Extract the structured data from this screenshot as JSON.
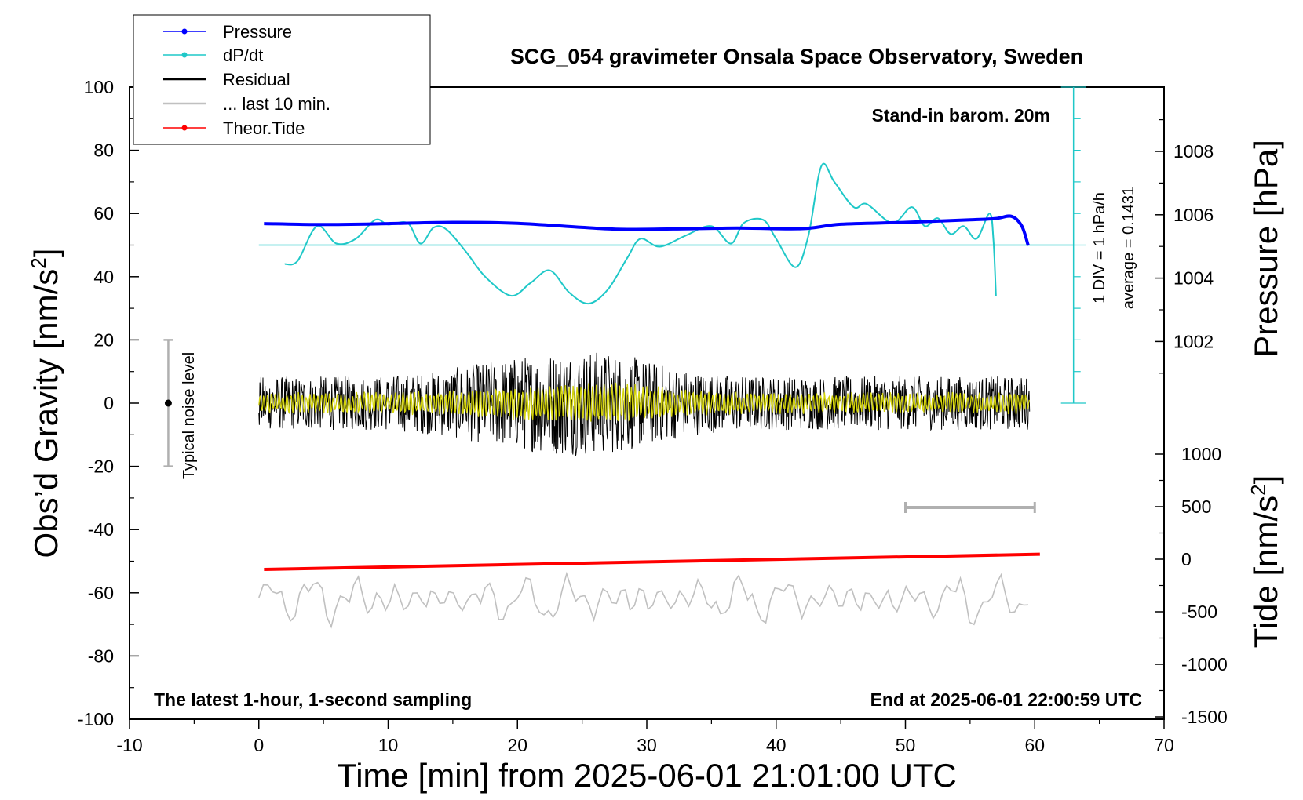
{
  "chart_data": {
    "type": "line",
    "title": "SCG_054 gravimeter Onsala Space Observatory, Sweden",
    "xlabel": "Time [min] from 2025-06-01 21:01:00 UTC",
    "ylabel_left": "Obs’d Gravity [nm/s",
    "ylabel_left_sup": "2",
    "ylabel_left_close": "]",
    "ylabel_right_pressure": "Pressure [hPa]",
    "ylabel_right_tide": "Tide [nm/s",
    "ylabel_right_tide_sup": "2",
    "ylabel_right_tide_close": "]",
    "xlim": [
      -10,
      70
    ],
    "ylim": [
      -100,
      100
    ],
    "x_ticks": [
      "-10",
      "0",
      "10",
      "20",
      "30",
      "40",
      "50",
      "60",
      "70"
    ],
    "y_ticks": [
      "100",
      "80",
      "60",
      "40",
      "20",
      "0",
      "-20",
      "-40",
      "-60",
      "-80",
      "-100"
    ],
    "pressure_ticks": [
      "1008",
      "1006",
      "1004",
      "1002"
    ],
    "pressure_tick_values": [
      1008,
      1006,
      1004,
      1002
    ],
    "tide_ticks": [
      "1000",
      "500",
      "0",
      "-500",
      "-1000",
      "-1500"
    ],
    "tide_tick_values": [
      1000,
      500,
      0,
      -500,
      -1000,
      -1500
    ],
    "annotations": {
      "barometer": "Stand-in barom. 20m",
      "div": "1 DIV = 1 hPa/h",
      "average": "average = 0.1431",
      "noise": "Typical noise level",
      "bottom_left": "The latest 1-hour, 1-second sampling",
      "bottom_right": "End at 2025-06-01 22:00:59 UTC"
    },
    "legend": {
      "placement": "top-left",
      "entries": [
        "Pressure",
        "dP/dt",
        "Residual",
        "... last 10 min.",
        "Theor.Tide"
      ]
    },
    "colors": {
      "pressure": "#0000ff",
      "dpdt": "#1fc8c8",
      "residual": "#000000",
      "residual_smooth": "#d4d40a",
      "last10": "#c0c0c0",
      "tide": "#ff0000",
      "noise_bar": "#b0b0b0"
    },
    "noise_level": {
      "x": -7,
      "y": 0,
      "low": -20,
      "high": 20
    },
    "last10_bracket": {
      "x": [
        50,
        60
      ],
      "y": -33
    },
    "dpdt_reference_y": 50,
    "dpdt_scale_x": 63,
    "series": [
      {
        "name": "Pressure",
        "x": [
          0.4,
          5,
          10,
          15,
          20,
          25,
          28,
          32,
          37,
          42,
          45,
          50,
          55,
          57,
          58.2,
          59,
          59.5
        ],
        "y": [
          56.8,
          56.5,
          56.8,
          57.2,
          56.9,
          55.6,
          55.0,
          55.1,
          55.4,
          55.2,
          56.6,
          57.2,
          58.0,
          58.4,
          59.1,
          56.0,
          49.8
        ]
      },
      {
        "name": "dP/dt",
        "x": [
          2,
          3,
          4.5,
          6,
          7.5,
          9,
          10,
          11.5,
          12.5,
          13.5,
          14.5,
          16,
          17.5,
          19.5,
          21,
          22.5,
          24,
          25.5,
          27,
          28.5,
          29.5,
          31,
          33,
          35,
          36.5,
          37.5,
          39,
          40,
          41.5,
          42.5,
          43.5,
          44.5,
          46,
          47,
          49,
          50.5,
          51.5,
          52.5,
          53.5,
          54.5,
          55.5,
          56.5,
          56.8,
          57
        ],
        "y": [
          44,
          45,
          56,
          50.5,
          52,
          58,
          56.5,
          57,
          50.5,
          55.5,
          55,
          48,
          40,
          34,
          38,
          42,
          35,
          31.5,
          36,
          46,
          52,
          49.5,
          53,
          56,
          50.5,
          57,
          58,
          52,
          43,
          53,
          75,
          70,
          62,
          63,
          57,
          62,
          56,
          58.5,
          53.5,
          56,
          52,
          60,
          52,
          34
        ]
      },
      {
        "name": "Theor.Tide",
        "x": [
          0.4,
          60.4
        ],
        "y": [
          -52.6,
          -47.8
        ]
      },
      {
        "name": "Residual",
        "x_range": [
          0,
          59.6
        ],
        "y_min": -22,
        "y_max": 23,
        "typical_amplitude": 10
      },
      {
        "name": "... last 10 min.",
        "x_range": [
          0,
          59.6
        ],
        "y_center": -62,
        "y_min": -73,
        "y_max": -54
      }
    ]
  }
}
